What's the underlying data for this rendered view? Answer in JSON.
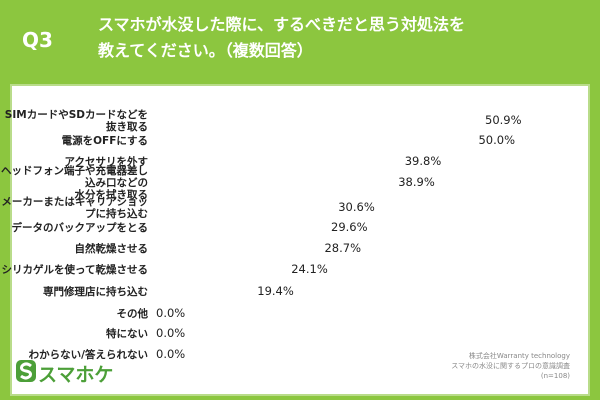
{
  "chart_data": {
    "type": "bar",
    "orientation": "horizontal",
    "question": "Q3",
    "title": "スマホが水没した際に、するべきだと思う対処法を\n教えてください。（複数回答）",
    "categories": [
      "SIMカードやSDカードなどを抜き取る",
      "電源をOFFにする",
      "アクセサリを外す",
      "ヘッドフォン端子や充電器差し込み口などの\n水分を拭き取る",
      "メーカーまたはキャリアショップに持ち込む",
      "データのバックアップをとる",
      "自然乾燥させる",
      "シリカゲルを使って乾燥させる",
      "専門修理店に持ち込む",
      "その他",
      "特にない",
      "わからない/答えられない"
    ],
    "values": [
      50.9,
      50.0,
      39.8,
      38.9,
      30.6,
      29.6,
      28.7,
      24.1,
      19.4,
      0.0,
      0.0,
      0.0
    ],
    "value_labels": [
      "50.9%",
      "50.0%",
      "39.8%",
      "38.9%",
      "30.6%",
      "29.6%",
      "28.7%",
      "24.1%",
      "19.4%",
      "0.0%",
      "0.0%",
      "0.0%"
    ],
    "color": "#4c9f38"
  },
  "logo": "スマホケ",
  "source": [
    "株式会社Warranty technology",
    "スマホの水没に関するプロの意識調査",
    "(n=108)"
  ]
}
